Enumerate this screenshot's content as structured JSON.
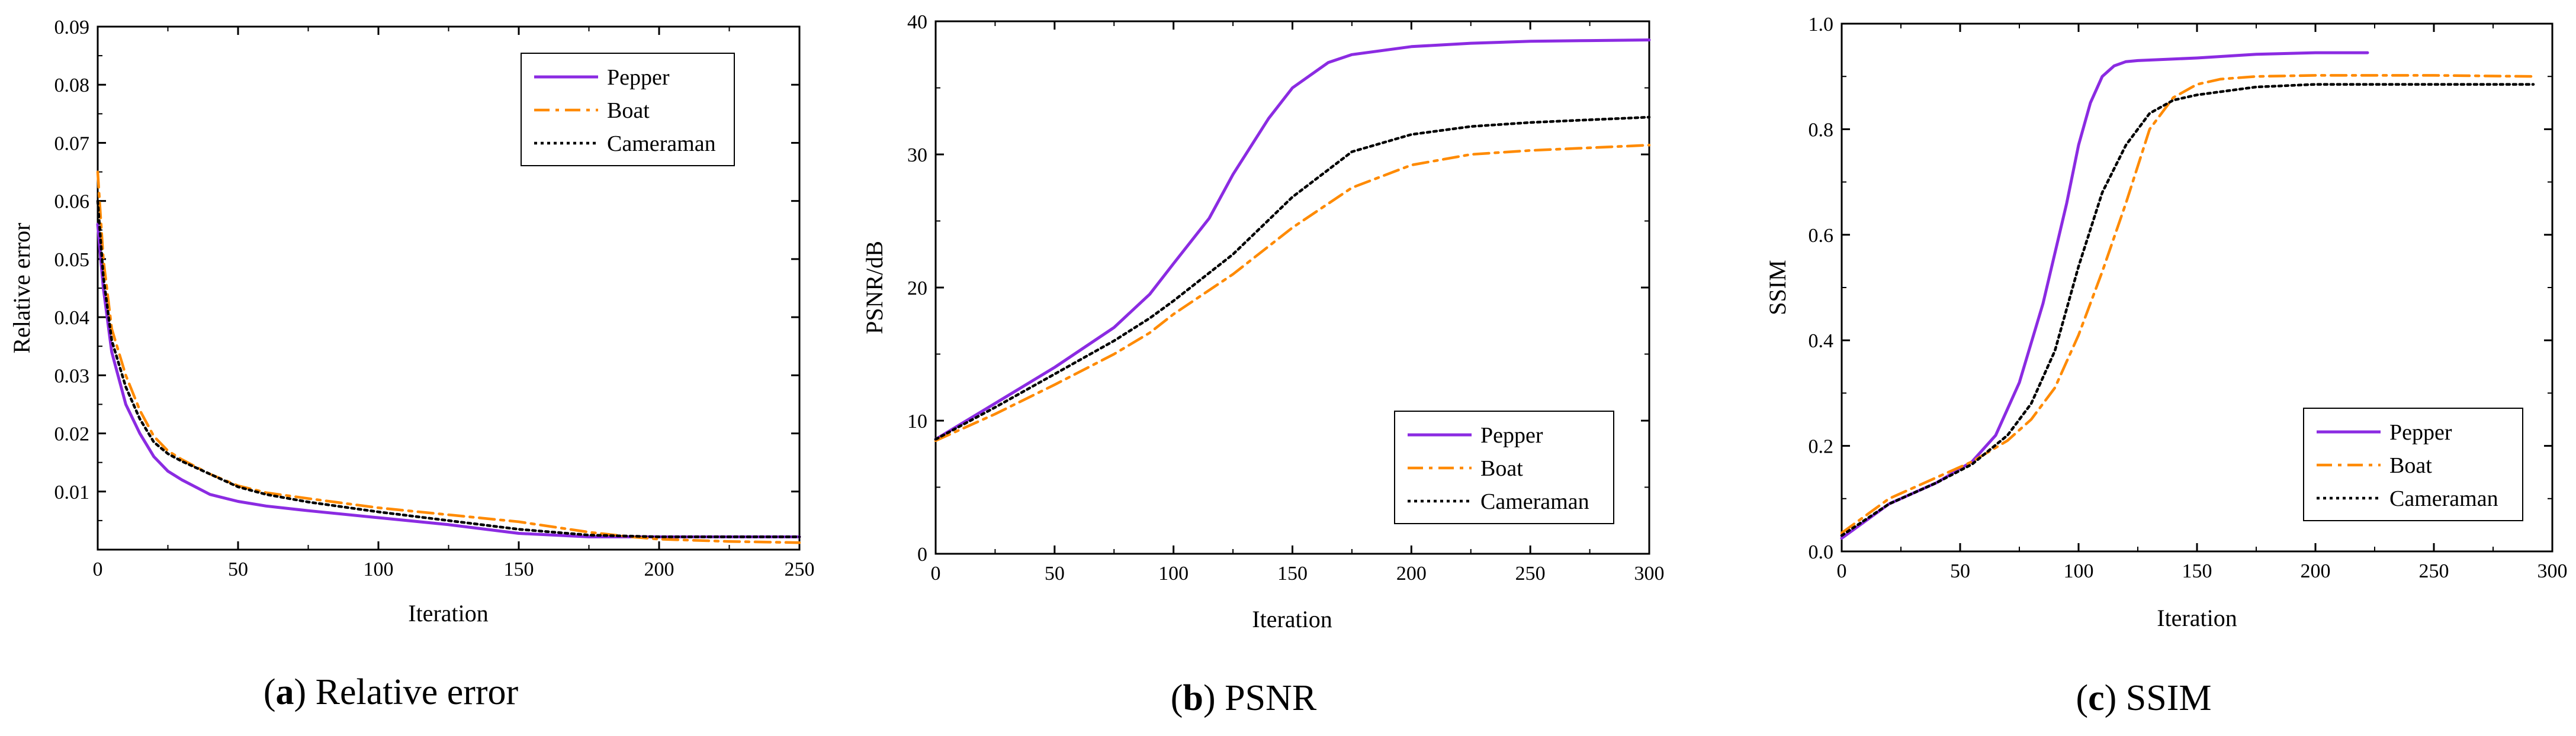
{
  "chart_data": [
    {
      "type": "line",
      "panel_letter": "a",
      "caption": "Relative error",
      "xlabel": "Iteration",
      "ylabel": "Relative error",
      "xlim": [
        0,
        250
      ],
      "ylim": [
        0.0,
        0.09
      ],
      "xticks": [
        0,
        50,
        100,
        150,
        200,
        250
      ],
      "xtick_labels": [
        "0",
        "50",
        "100",
        "150",
        "200",
        "250"
      ],
      "yticks": [
        0.01,
        0.02,
        0.03,
        0.04,
        0.05,
        0.06,
        0.07,
        0.08,
        0.09
      ],
      "ytick_labels": [
        "0.01",
        "0.02",
        "0.03",
        "0.04",
        "0.05",
        "0.06",
        "0.07",
        "0.08",
        "0.09"
      ],
      "legend_position": "top-right",
      "series": [
        {
          "name": "Pepper",
          "color": "#8B2BE2",
          "style": "solid",
          "x": [
            0,
            2,
            5,
            10,
            15,
            20,
            25,
            30,
            40,
            50,
            60,
            75,
            100,
            125,
            150,
            175,
            200,
            225,
            250
          ],
          "y": [
            0.056,
            0.045,
            0.034,
            0.025,
            0.02,
            0.016,
            0.0135,
            0.012,
            0.0095,
            0.0083,
            0.0075,
            0.0067,
            0.0055,
            0.0043,
            0.0028,
            0.0022,
            0.0022,
            0.0022,
            0.0022
          ]
        },
        {
          "name": "Boat",
          "color": "#FF8A00",
          "style": "dashdot",
          "x": [
            0,
            2,
            5,
            10,
            15,
            20,
            25,
            30,
            40,
            50,
            60,
            75,
            100,
            125,
            150,
            175,
            190,
            200,
            225,
            250
          ],
          "y": [
            0.065,
            0.05,
            0.038,
            0.03,
            0.024,
            0.0195,
            0.017,
            0.0155,
            0.013,
            0.011,
            0.0098,
            0.0088,
            0.0072,
            0.006,
            0.0048,
            0.003,
            0.0022,
            0.0018,
            0.0014,
            0.0012
          ]
        },
        {
          "name": "Cameraman",
          "color": "#000000",
          "style": "dotted",
          "x": [
            0,
            2,
            5,
            10,
            15,
            20,
            25,
            30,
            40,
            50,
            60,
            75,
            100,
            125,
            150,
            175,
            200,
            225,
            250
          ],
          "y": [
            0.06,
            0.047,
            0.036,
            0.028,
            0.0225,
            0.0185,
            0.0165,
            0.0152,
            0.013,
            0.0108,
            0.0095,
            0.0082,
            0.0065,
            0.005,
            0.0035,
            0.0025,
            0.0022,
            0.0022,
            0.0022
          ]
        }
      ]
    },
    {
      "type": "line",
      "panel_letter": "b",
      "caption": "PSNR",
      "xlabel": "Iteration",
      "ylabel": "PSNR/dB",
      "xlim": [
        0,
        300
      ],
      "ylim": [
        0,
        40
      ],
      "xticks": [
        0,
        50,
        100,
        150,
        200,
        250,
        300
      ],
      "xtick_labels": [
        "0",
        "50",
        "100",
        "150",
        "200",
        "250",
        "300"
      ],
      "yticks": [
        0,
        10,
        20,
        30,
        40
      ],
      "ytick_labels": [
        "0",
        "10",
        "20",
        "30",
        "40"
      ],
      "legend_position": "bottom-right",
      "series": [
        {
          "name": "Pepper",
          "color": "#8B2BE2",
          "style": "solid",
          "x": [
            0,
            25,
            50,
            75,
            90,
            100,
            115,
            125,
            140,
            150,
            165,
            175,
            200,
            225,
            250,
            275,
            300
          ],
          "y": [
            8.6,
            11.3,
            14.0,
            17.0,
            19.5,
            21.8,
            25.2,
            28.5,
            32.7,
            35.0,
            36.9,
            37.5,
            38.1,
            38.35,
            38.5,
            38.55,
            38.6
          ]
        },
        {
          "name": "Boat",
          "color": "#FF8A00",
          "style": "dashdot",
          "x": [
            0,
            25,
            50,
            75,
            90,
            100,
            125,
            150,
            175,
            200,
            225,
            250,
            275,
            300
          ],
          "y": [
            8.5,
            10.5,
            12.7,
            15.0,
            16.6,
            18.0,
            21.0,
            24.5,
            27.5,
            29.2,
            30.0,
            30.3,
            30.5,
            30.7
          ]
        },
        {
          "name": "Cameraman",
          "color": "#000000",
          "style": "dotted",
          "x": [
            0,
            25,
            50,
            75,
            90,
            100,
            125,
            150,
            175,
            200,
            225,
            250,
            275,
            300
          ],
          "y": [
            8.6,
            11.0,
            13.5,
            16.0,
            17.7,
            19.0,
            22.5,
            26.8,
            30.2,
            31.5,
            32.1,
            32.4,
            32.6,
            32.8
          ]
        }
      ]
    },
    {
      "type": "line",
      "panel_letter": "c",
      "caption": "SSIM",
      "xlabel": "Iteration",
      "ylabel": "SSIM",
      "xlim": [
        0,
        300
      ],
      "ylim": [
        0.0,
        1.0
      ],
      "xticks": [
        0,
        50,
        100,
        150,
        200,
        250,
        300
      ],
      "xtick_labels": [
        "0",
        "50",
        "100",
        "150",
        "200",
        "250",
        "300"
      ],
      "yticks": [
        0.0,
        0.2,
        0.4,
        0.6,
        0.8,
        1.0
      ],
      "ytick_labels": [
        "0.0",
        "0.2",
        "0.4",
        "0.6",
        "0.8",
        "1.0"
      ],
      "legend_position": "bottom-right",
      "series": [
        {
          "name": "Pepper",
          "color": "#8B2BE2",
          "style": "solid",
          "x": [
            0,
            20,
            40,
            55,
            65,
            75,
            85,
            95,
            100,
            105,
            110,
            115,
            120,
            125,
            150,
            175,
            200,
            222
          ],
          "y": [
            0.025,
            0.09,
            0.13,
            0.17,
            0.22,
            0.32,
            0.47,
            0.66,
            0.77,
            0.85,
            0.9,
            0.92,
            0.928,
            0.93,
            0.935,
            0.942,
            0.945,
            0.945
          ]
        },
        {
          "name": "Boat",
          "color": "#FF8A00",
          "style": "dashdot",
          "x": [
            0,
            20,
            40,
            55,
            70,
            80,
            90,
            100,
            110,
            120,
            130,
            140,
            150,
            160,
            175,
            200,
            250,
            292
          ],
          "y": [
            0.035,
            0.1,
            0.14,
            0.17,
            0.21,
            0.25,
            0.31,
            0.41,
            0.53,
            0.66,
            0.8,
            0.86,
            0.885,
            0.895,
            0.9,
            0.902,
            0.902,
            0.9
          ]
        },
        {
          "name": "Cameraman",
          "color": "#000000",
          "style": "dotted",
          "x": [
            0,
            20,
            40,
            55,
            70,
            80,
            90,
            100,
            110,
            120,
            130,
            140,
            150,
            175,
            200,
            250,
            292
          ],
          "y": [
            0.03,
            0.09,
            0.13,
            0.165,
            0.22,
            0.28,
            0.38,
            0.54,
            0.68,
            0.77,
            0.83,
            0.855,
            0.865,
            0.88,
            0.885,
            0.885,
            0.885
          ]
        }
      ]
    }
  ]
}
